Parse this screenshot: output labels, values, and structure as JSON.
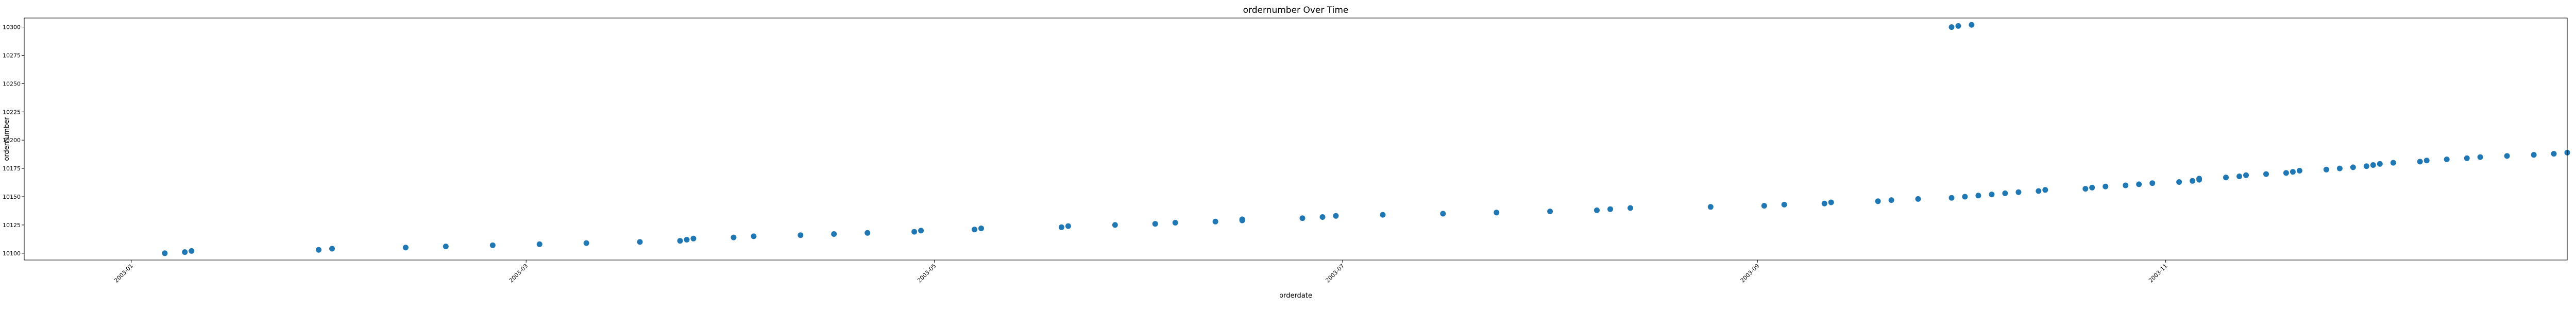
{
  "chart_data": {
    "type": "scatter",
    "title": "ordernumber Over Time",
    "xlabel": "orderdate",
    "ylabel": "ordernumber",
    "xlim": [
      "2002-12-16",
      "2003-12-31"
    ],
    "ylim": [
      10094,
      10308
    ],
    "xticks": [
      "2003-01",
      "2003-03",
      "2003-05",
      "2003-07",
      "2003-09",
      "2003-11"
    ],
    "xtick_dates": [
      "2003-01-01",
      "2003-03-01",
      "2003-05-01",
      "2003-07-01",
      "2003-09-01",
      "2003-11-01"
    ],
    "yticks": [
      10100,
      10125,
      10150,
      10175,
      10200,
      10225,
      10250,
      10275,
      10300
    ],
    "grid": false,
    "marker_color": "#1f77b4",
    "series": [
      {
        "points": [
          [
            "2003-01-06",
            10100
          ],
          [
            "2003-01-09",
            10101
          ],
          [
            "2003-01-10",
            10102
          ],
          [
            "2003-01-29",
            10103
          ],
          [
            "2003-01-31",
            10104
          ],
          [
            "2003-02-11",
            10105
          ],
          [
            "2003-02-17",
            10106
          ],
          [
            "2003-02-24",
            10107
          ],
          [
            "2003-03-03",
            10108
          ],
          [
            "2003-03-10",
            10109
          ],
          [
            "2003-03-18",
            10110
          ],
          [
            "2003-03-24",
            10111
          ],
          [
            "2003-03-25",
            10112
          ],
          [
            "2003-03-26",
            10113
          ],
          [
            "2003-04-01",
            10114
          ],
          [
            "2003-04-04",
            10115
          ],
          [
            "2003-04-11",
            10116
          ],
          [
            "2003-04-16",
            10117
          ],
          [
            "2003-04-21",
            10118
          ],
          [
            "2003-04-28",
            10119
          ],
          [
            "2003-04-29",
            10120
          ],
          [
            "2003-05-07",
            10121
          ],
          [
            "2003-05-08",
            10122
          ],
          [
            "2003-05-20",
            10123
          ],
          [
            "2003-05-21",
            10124
          ],
          [
            "2003-05-28",
            10125
          ],
          [
            "2003-06-03",
            10126
          ],
          [
            "2003-06-06",
            10127
          ],
          [
            "2003-06-12",
            10128
          ],
          [
            "2003-06-16",
            10129
          ],
          [
            "2003-06-16",
            10130
          ],
          [
            "2003-06-25",
            10131
          ],
          [
            "2003-06-28",
            10132
          ],
          [
            "2003-06-30",
            10133
          ],
          [
            "2003-07-07",
            10134
          ],
          [
            "2003-07-16",
            10135
          ],
          [
            "2003-07-24",
            10136
          ],
          [
            "2003-08-01",
            10137
          ],
          [
            "2003-08-08",
            10138
          ],
          [
            "2003-08-10",
            10139
          ],
          [
            "2003-08-13",
            10140
          ],
          [
            "2003-08-25",
            10141
          ],
          [
            "2003-09-02",
            10142
          ],
          [
            "2003-09-05",
            10143
          ],
          [
            "2003-09-11",
            10144
          ],
          [
            "2003-09-12",
            10145
          ],
          [
            "2003-09-19",
            10146
          ],
          [
            "2003-09-21",
            10147
          ],
          [
            "2003-09-25",
            10148
          ],
          [
            "2003-09-30",
            10149
          ],
          [
            "2003-10-02",
            10150
          ],
          [
            "2003-10-04",
            10151
          ],
          [
            "2003-10-06",
            10152
          ],
          [
            "2003-10-08",
            10153
          ],
          [
            "2003-10-10",
            10154
          ],
          [
            "2003-10-13",
            10155
          ],
          [
            "2003-10-14",
            10156
          ],
          [
            "2003-10-20",
            10157
          ],
          [
            "2003-10-21",
            10158
          ],
          [
            "2003-10-23",
            10159
          ],
          [
            "2003-10-26",
            10160
          ],
          [
            "2003-10-28",
            10161
          ],
          [
            "2003-10-30",
            10162
          ],
          [
            "2003-11-03",
            10163
          ],
          [
            "2003-11-05",
            10164
          ],
          [
            "2003-11-06",
            10165
          ],
          [
            "2003-11-06",
            10166
          ],
          [
            "2003-11-10",
            10167
          ],
          [
            "2003-11-12",
            10168
          ],
          [
            "2003-11-13",
            10169
          ],
          [
            "2003-11-16",
            10170
          ],
          [
            "2003-11-19",
            10171
          ],
          [
            "2003-11-20",
            10172
          ],
          [
            "2003-11-21",
            10173
          ],
          [
            "2003-11-25",
            10174
          ],
          [
            "2003-11-27",
            10175
          ],
          [
            "2003-11-29",
            10176
          ],
          [
            "2003-12-01",
            10177
          ],
          [
            "2003-12-02",
            10178
          ],
          [
            "2003-12-03",
            10179
          ],
          [
            "2003-12-05",
            10180
          ],
          [
            "2003-12-09",
            10181
          ],
          [
            "2003-12-10",
            10182
          ],
          [
            "2003-12-13",
            10183
          ],
          [
            "2003-12-16",
            10184
          ],
          [
            "2003-12-18",
            10185
          ],
          [
            "2003-12-22",
            10186
          ],
          [
            "2003-12-26",
            10187
          ],
          [
            "2003-12-29",
            10188
          ],
          [
            "2003-12-31",
            10189
          ],
          [
            "2003-09-30",
            10300
          ],
          [
            "2003-10-01",
            10301
          ],
          [
            "2003-10-03",
            10302
          ]
        ]
      }
    ]
  }
}
